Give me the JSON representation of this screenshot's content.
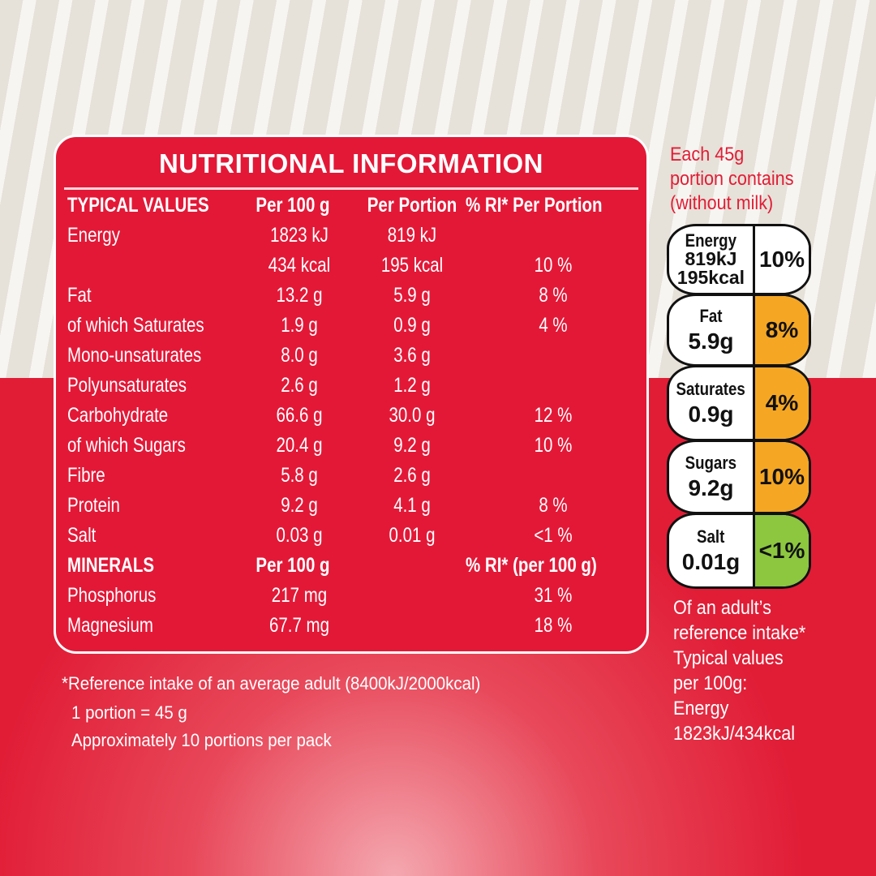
{
  "colors": {
    "red": "#e31837",
    "amber": "#f5a623",
    "green": "#8dc63f",
    "beige": "#ebe7e0"
  },
  "table": {
    "title": "NUTRITIONAL INFORMATION",
    "header": [
      "TYPICAL VALUES",
      "Per 100 g",
      "Per Portion",
      "% RI* Per Portion"
    ],
    "rows": [
      [
        "Energy",
        "1823 kJ",
        "819 kJ",
        ""
      ],
      [
        "",
        "434 kcal",
        "195 kcal",
        "10 %"
      ],
      [
        "Fat",
        "13.2 g",
        "5.9 g",
        "8 %"
      ],
      [
        "of which Saturates",
        "1.9 g",
        "0.9 g",
        "4 %"
      ],
      [
        "Mono-unsaturates",
        "8.0 g",
        "3.6 g",
        ""
      ],
      [
        "Polyunsaturates",
        "2.6 g",
        "1.2 g",
        ""
      ],
      [
        "Carbohydrate",
        "66.6 g",
        "30.0 g",
        "12 %"
      ],
      [
        "of which Sugars",
        "20.4 g",
        "9.2 g",
        "10 %"
      ],
      [
        "Fibre",
        "5.8 g",
        "2.6 g",
        ""
      ],
      [
        "Protein",
        "9.2 g",
        "4.1 g",
        "8 %"
      ],
      [
        "Salt",
        "0.03 g",
        "0.01 g",
        "<1 %"
      ]
    ],
    "minerals_header": [
      "MINERALS",
      "Per 100 g",
      "",
      "% RI* (per 100 g)"
    ],
    "minerals": [
      [
        "Phosphorus",
        "217 mg",
        "",
        "31 %"
      ],
      [
        "Magnesium",
        "67.7 mg",
        "",
        "18 %"
      ]
    ]
  },
  "footnotes": [
    "*Reference intake of an average adult (8400kJ/2000kcal)",
    "1 portion = 45 g",
    "Approximately 10 portions per pack"
  ],
  "front_of_pack": {
    "intro": [
      "Each 45g",
      "portion contains",
      "(without milk)"
    ],
    "items": [
      {
        "name": "Energy",
        "value": "819kJ",
        "value2": "195kcal",
        "ri": "10%",
        "level": "none"
      },
      {
        "name": "Fat",
        "value": "5.9g",
        "ri": "8%",
        "level": "medium"
      },
      {
        "name": "Saturates",
        "value": "0.9g",
        "ri": "4%",
        "level": "medium"
      },
      {
        "name": "Sugars",
        "value": "9.2g",
        "ri": "10%",
        "level": "medium"
      },
      {
        "name": "Salt",
        "value": "0.01g",
        "ri": "<1%",
        "level": "low"
      }
    ],
    "note": [
      "Of an adult’s",
      "reference intake*",
      "Typical values",
      "per 100g:",
      "Energy",
      "1823kJ/434kcal"
    ]
  }
}
